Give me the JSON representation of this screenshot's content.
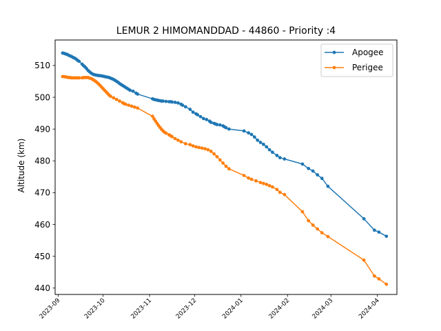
{
  "chart_data": {
    "type": "line",
    "title": "LEMUR 2 HIMOMANDDAD - 44860 - Priority :4",
    "xlabel": "",
    "ylabel": "Altitude (km)",
    "ylim": [
      438,
      518
    ],
    "xlim": [
      "2023-08-30",
      "2024-04-14"
    ],
    "yticks": [
      440,
      450,
      460,
      470,
      480,
      490,
      500,
      510
    ],
    "xticks": [
      "2023-09-01",
      "2023-10-01",
      "2023-11-01",
      "2023-12-01",
      "2024-01-01",
      "2024-02-01",
      "2024-03-01",
      "2024-04-01"
    ],
    "xtick_labels": [
      "2023-09",
      "2023-10",
      "2023-11",
      "2023-12",
      "2024-01",
      "2024-02",
      "2024-03",
      "2024-04"
    ],
    "grid": false,
    "legend": "top-right",
    "series": [
      {
        "name": "Apogee",
        "color": "#1f77b4",
        "x": [
          "2023-09-04",
          "2023-09-05",
          "2023-09-06",
          "2023-09-07",
          "2023-09-08",
          "2023-09-09",
          "2023-09-10",
          "2023-09-11",
          "2023-09-12",
          "2023-09-13",
          "2023-09-14",
          "2023-09-15",
          "2023-09-17",
          "2023-09-18",
          "2023-09-19",
          "2023-09-20",
          "2023-09-21",
          "2023-09-22",
          "2023-09-23",
          "2023-09-24",
          "2023-09-25",
          "2023-09-26",
          "2023-09-27",
          "2023-09-28",
          "2023-09-29",
          "2023-09-30",
          "2023-10-01",
          "2023-10-02",
          "2023-10-03",
          "2023-10-04",
          "2023-10-05",
          "2023-10-06",
          "2023-10-07",
          "2023-10-08",
          "2023-10-09",
          "2023-10-10",
          "2023-10-11",
          "2023-10-12",
          "2023-10-13",
          "2023-10-14",
          "2023-10-15",
          "2023-10-16",
          "2023-10-17",
          "2023-10-18",
          "2023-10-19",
          "2023-10-21",
          "2023-10-23",
          "2023-10-24",
          "2023-11-03",
          "2023-11-04",
          "2023-11-05",
          "2023-11-06",
          "2023-11-07",
          "2023-11-08",
          "2023-11-09",
          "2023-11-10",
          "2023-11-12",
          "2023-11-14",
          "2023-11-15",
          "2023-11-16",
          "2023-11-18",
          "2023-11-20",
          "2023-11-22",
          "2023-11-23",
          "2023-11-25",
          "2023-11-28",
          "2023-11-30",
          "2023-12-02",
          "2023-12-03",
          "2023-12-05",
          "2023-12-07",
          "2023-12-09",
          "2023-12-11",
          "2023-12-12",
          "2023-12-14",
          "2023-12-15",
          "2023-12-16",
          "2023-12-18",
          "2023-12-20",
          "2023-12-21",
          "2023-12-22",
          "2023-12-24",
          "2024-01-03",
          "2024-01-06",
          "2024-01-08",
          "2024-01-10",
          "2024-01-12",
          "2024-01-14",
          "2024-01-16",
          "2024-01-18",
          "2024-01-20",
          "2024-01-22",
          "2024-01-25",
          "2024-01-27",
          "2024-01-30",
          "2024-02-11",
          "2024-02-15",
          "2024-02-18",
          "2024-02-21",
          "2024-02-24",
          "2024-02-28",
          "2024-03-23",
          "2024-03-30",
          "2024-04-02",
          "2024-04-07"
        ],
        "values": [
          513.9,
          513.8,
          513.6,
          513.5,
          513.2,
          513.0,
          512.8,
          512.5,
          512.3,
          512.0,
          511.6,
          511.3,
          510.4,
          509.9,
          509.5,
          509.0,
          508.4,
          508.0,
          507.6,
          507.3,
          507.1,
          507.0,
          506.9,
          506.8,
          506.8,
          506.7,
          506.6,
          506.5,
          506.4,
          506.3,
          506.2,
          506.0,
          505.8,
          505.6,
          505.3,
          505.0,
          504.7,
          504.3,
          504.0,
          503.7,
          503.4,
          503.1,
          502.8,
          502.5,
          502.2,
          501.9,
          501.3,
          501.0,
          499.5,
          499.3,
          499.2,
          499.1,
          499.0,
          498.9,
          498.8,
          498.8,
          498.7,
          498.6,
          498.6,
          498.5,
          498.4,
          498.2,
          497.8,
          497.5,
          497.0,
          496.2,
          495.3,
          494.8,
          494.5,
          493.9,
          493.3,
          493.0,
          492.5,
          492.1,
          491.8,
          491.6,
          491.4,
          491.3,
          491.0,
          490.7,
          490.4,
          490.0,
          489.4,
          488.8,
          488.3,
          487.5,
          486.5,
          485.8,
          485.2,
          484.4,
          483.5,
          482.7,
          481.7,
          481.0,
          480.6,
          479.0,
          477.6,
          476.8,
          475.6,
          474.5,
          472.0,
          461.8,
          458.2,
          457.6,
          456.3
        ]
      },
      {
        "name": "Perigee",
        "color": "#ff7f0e",
        "x": [
          "2023-09-04",
          "2023-09-05",
          "2023-09-06",
          "2023-09-07",
          "2023-09-08",
          "2023-09-09",
          "2023-09-10",
          "2023-09-11",
          "2023-09-12",
          "2023-09-13",
          "2023-09-14",
          "2023-09-15",
          "2023-09-17",
          "2023-09-18",
          "2023-09-19",
          "2023-09-20",
          "2023-09-21",
          "2023-09-22",
          "2023-09-23",
          "2023-09-24",
          "2023-09-25",
          "2023-09-26",
          "2023-09-27",
          "2023-09-28",
          "2023-09-29",
          "2023-09-30",
          "2023-10-01",
          "2023-10-02",
          "2023-10-03",
          "2023-10-04",
          "2023-10-05",
          "2023-10-06",
          "2023-10-08",
          "2023-10-10",
          "2023-10-12",
          "2023-10-14",
          "2023-10-15",
          "2023-10-16",
          "2023-10-18",
          "2023-10-20",
          "2023-10-22",
          "2023-10-24",
          "2023-11-03",
          "2023-11-04",
          "2023-11-05",
          "2023-11-06",
          "2023-11-07",
          "2023-11-08",
          "2023-11-09",
          "2023-11-10",
          "2023-11-11",
          "2023-11-12",
          "2023-11-14",
          "2023-11-15",
          "2023-11-16",
          "2023-11-18",
          "2023-11-20",
          "2023-11-22",
          "2023-11-25",
          "2023-11-28",
          "2023-11-30",
          "2023-12-02",
          "2023-12-04",
          "2023-12-06",
          "2023-12-08",
          "2023-12-10",
          "2023-12-12",
          "2023-12-14",
          "2023-12-16",
          "2023-12-18",
          "2023-12-20",
          "2023-12-22",
          "2023-12-24",
          "2024-01-03",
          "2024-01-06",
          "2024-01-08",
          "2024-01-11",
          "2024-01-14",
          "2024-01-16",
          "2024-01-18",
          "2024-01-20",
          "2024-01-22",
          "2024-01-25",
          "2024-01-27",
          "2024-01-30",
          "2024-02-11",
          "2024-02-15",
          "2024-02-18",
          "2024-02-21",
          "2024-02-24",
          "2024-02-28",
          "2024-03-23",
          "2024-03-30",
          "2024-04-02",
          "2024-04-07"
        ],
        "values": [
          506.5,
          506.5,
          506.4,
          506.3,
          506.2,
          506.2,
          506.1,
          506.1,
          506.1,
          506.1,
          506.1,
          506.1,
          506.1,
          506.2,
          506.2,
          506.2,
          506.2,
          506.0,
          505.9,
          505.6,
          505.3,
          505.0,
          504.6,
          504.2,
          503.7,
          503.2,
          502.7,
          502.2,
          501.7,
          501.2,
          500.7,
          500.3,
          499.8,
          499.3,
          498.8,
          498.3,
          498.0,
          497.8,
          497.5,
          497.2,
          496.9,
          496.6,
          494.0,
          493.2,
          492.5,
          491.8,
          491.1,
          490.5,
          489.9,
          489.4,
          489.0,
          488.7,
          488.2,
          487.9,
          487.6,
          487.0,
          486.5,
          486.0,
          485.4,
          485.1,
          484.7,
          484.4,
          484.2,
          484.0,
          483.8,
          483.5,
          483.0,
          482.2,
          481.3,
          480.3,
          479.3,
          478.3,
          477.5,
          475.4,
          474.6,
          474.2,
          473.7,
          473.2,
          472.9,
          472.6,
          472.2,
          471.8,
          471.0,
          470.1,
          469.4,
          464.0,
          461.2,
          459.8,
          458.6,
          457.4,
          456.2,
          448.8,
          443.8,
          442.9,
          441.2
        ]
      }
    ]
  }
}
